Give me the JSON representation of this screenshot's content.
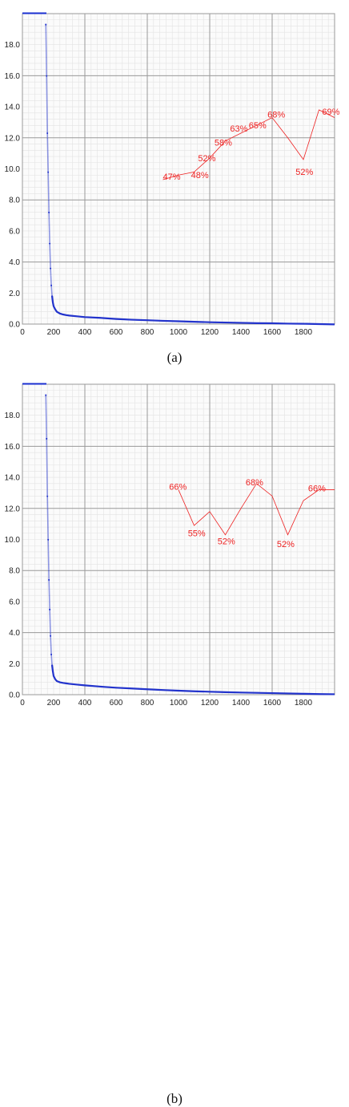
{
  "captions": [
    "(a)",
    "(b)"
  ],
  "chart_data": [
    {
      "type": "line",
      "panel": "(a)",
      "title": "",
      "xlabel": "",
      "ylabel": "",
      "xlim": [
        0,
        2000
      ],
      "ylim": [
        0,
        20
      ],
      "grid": true,
      "x_ticks": [
        "0",
        "200",
        "400",
        "600",
        "800",
        "1000",
        "1200",
        "1400",
        "1600",
        "1800"
      ],
      "y_ticks": [
        "0.0",
        "2.0",
        "4.0",
        "6.0",
        "8.0",
        "10.0",
        "12.0",
        "14.0",
        "16.0",
        "18.0"
      ],
      "series": [
        {
          "color": "#2233cc",
          "style": "points",
          "x": [
            150,
            155,
            160,
            165,
            170,
            175,
            180,
            185,
            190,
            195,
            200,
            210,
            220,
            240,
            260,
            280,
            300,
            350,
            400,
            500,
            600,
            700,
            800,
            900,
            1000,
            1100,
            1200,
            1300,
            1400,
            1500,
            1600,
            1700,
            1800,
            1900,
            2000
          ],
          "values": [
            19.3,
            16.0,
            12.3,
            9.8,
            7.2,
            5.2,
            3.6,
            2.5,
            1.8,
            1.4,
            1.15,
            0.95,
            0.8,
            0.68,
            0.62,
            0.58,
            0.55,
            0.5,
            0.45,
            0.4,
            0.33,
            0.28,
            0.25,
            0.21,
            0.18,
            0.15,
            0.12,
            0.1,
            0.08,
            0.06,
            0.05,
            0.03,
            0.02,
            0.0,
            -0.02
          ]
        },
        {
          "color": "#ee2222",
          "style": "line",
          "x": [
            900,
            1000,
            1100,
            1200,
            1300,
            1400,
            1500,
            1600,
            1700,
            1800,
            1900,
            2000
          ],
          "values": [
            9.3,
            9.6,
            9.8,
            10.7,
            11.8,
            12.3,
            12.8,
            13.3,
            12.0,
            10.6,
            13.8,
            13.3
          ]
        }
      ],
      "annotations": [
        {
          "text": "47%",
          "x": 900,
          "y": 9.3
        },
        {
          "text": "48%",
          "x": 1080,
          "y": 9.4
        },
        {
          "text": "52%",
          "x": 1125,
          "y": 10.5
        },
        {
          "text": "58%",
          "x": 1230,
          "y": 11.5
        },
        {
          "text": "63%",
          "x": 1330,
          "y": 12.4
        },
        {
          "text": "65%",
          "x": 1450,
          "y": 12.6
        },
        {
          "text": "68%",
          "x": 1570,
          "y": 13.3
        },
        {
          "text": "52%",
          "x": 1750,
          "y": 9.6
        },
        {
          "text": "69%",
          "x": 1920,
          "y": 13.5
        }
      ]
    },
    {
      "type": "line",
      "panel": "(b)",
      "title": "",
      "xlabel": "",
      "ylabel": "",
      "xlim": [
        0,
        2000
      ],
      "ylim": [
        0,
        20
      ],
      "grid": true,
      "x_ticks": [
        "0",
        "200",
        "400",
        "600",
        "800",
        "1000",
        "1200",
        "1400",
        "1600",
        "1800"
      ],
      "y_ticks": [
        "0.0",
        "2.0",
        "4.0",
        "6.0",
        "8.0",
        "10.0",
        "12.0",
        "14.0",
        "16.0",
        "18.0"
      ],
      "series": [
        {
          "color": "#2233cc",
          "style": "points",
          "x": [
            150,
            155,
            160,
            165,
            170,
            175,
            180,
            185,
            190,
            195,
            200,
            210,
            220,
            240,
            260,
            280,
            300,
            350,
            400,
            500,
            600,
            700,
            800,
            900,
            1000,
            1100,
            1200,
            1300,
            1400,
            1500,
            1600,
            1700,
            1800,
            1900,
            2000
          ],
          "values": [
            19.3,
            16.5,
            12.8,
            10.0,
            7.4,
            5.5,
            3.8,
            2.6,
            1.9,
            1.5,
            1.2,
            1.0,
            0.88,
            0.8,
            0.76,
            0.73,
            0.7,
            0.65,
            0.6,
            0.52,
            0.45,
            0.4,
            0.35,
            0.3,
            0.26,
            0.22,
            0.19,
            0.16,
            0.14,
            0.12,
            0.1,
            0.08,
            0.06,
            0.04,
            0.03
          ]
        },
        {
          "color": "#ee2222",
          "style": "line",
          "x": [
            1000,
            1100,
            1200,
            1300,
            1400,
            1500,
            1600,
            1700,
            1800,
            1900,
            2000
          ],
          "values": [
            13.2,
            10.9,
            11.8,
            10.3,
            12.0,
            13.6,
            12.8,
            10.3,
            12.5,
            13.2,
            13.2
          ]
        }
      ],
      "annotations": [
        {
          "text": "66%",
          "x": 940,
          "y": 13.2
        },
        {
          "text": "55%",
          "x": 1060,
          "y": 10.2
        },
        {
          "text": "52%",
          "x": 1250,
          "y": 9.7
        },
        {
          "text": "68%",
          "x": 1430,
          "y": 13.5
        },
        {
          "text": "52%",
          "x": 1630,
          "y": 9.5
        },
        {
          "text": "66%",
          "x": 1830,
          "y": 13.1
        }
      ]
    }
  ]
}
